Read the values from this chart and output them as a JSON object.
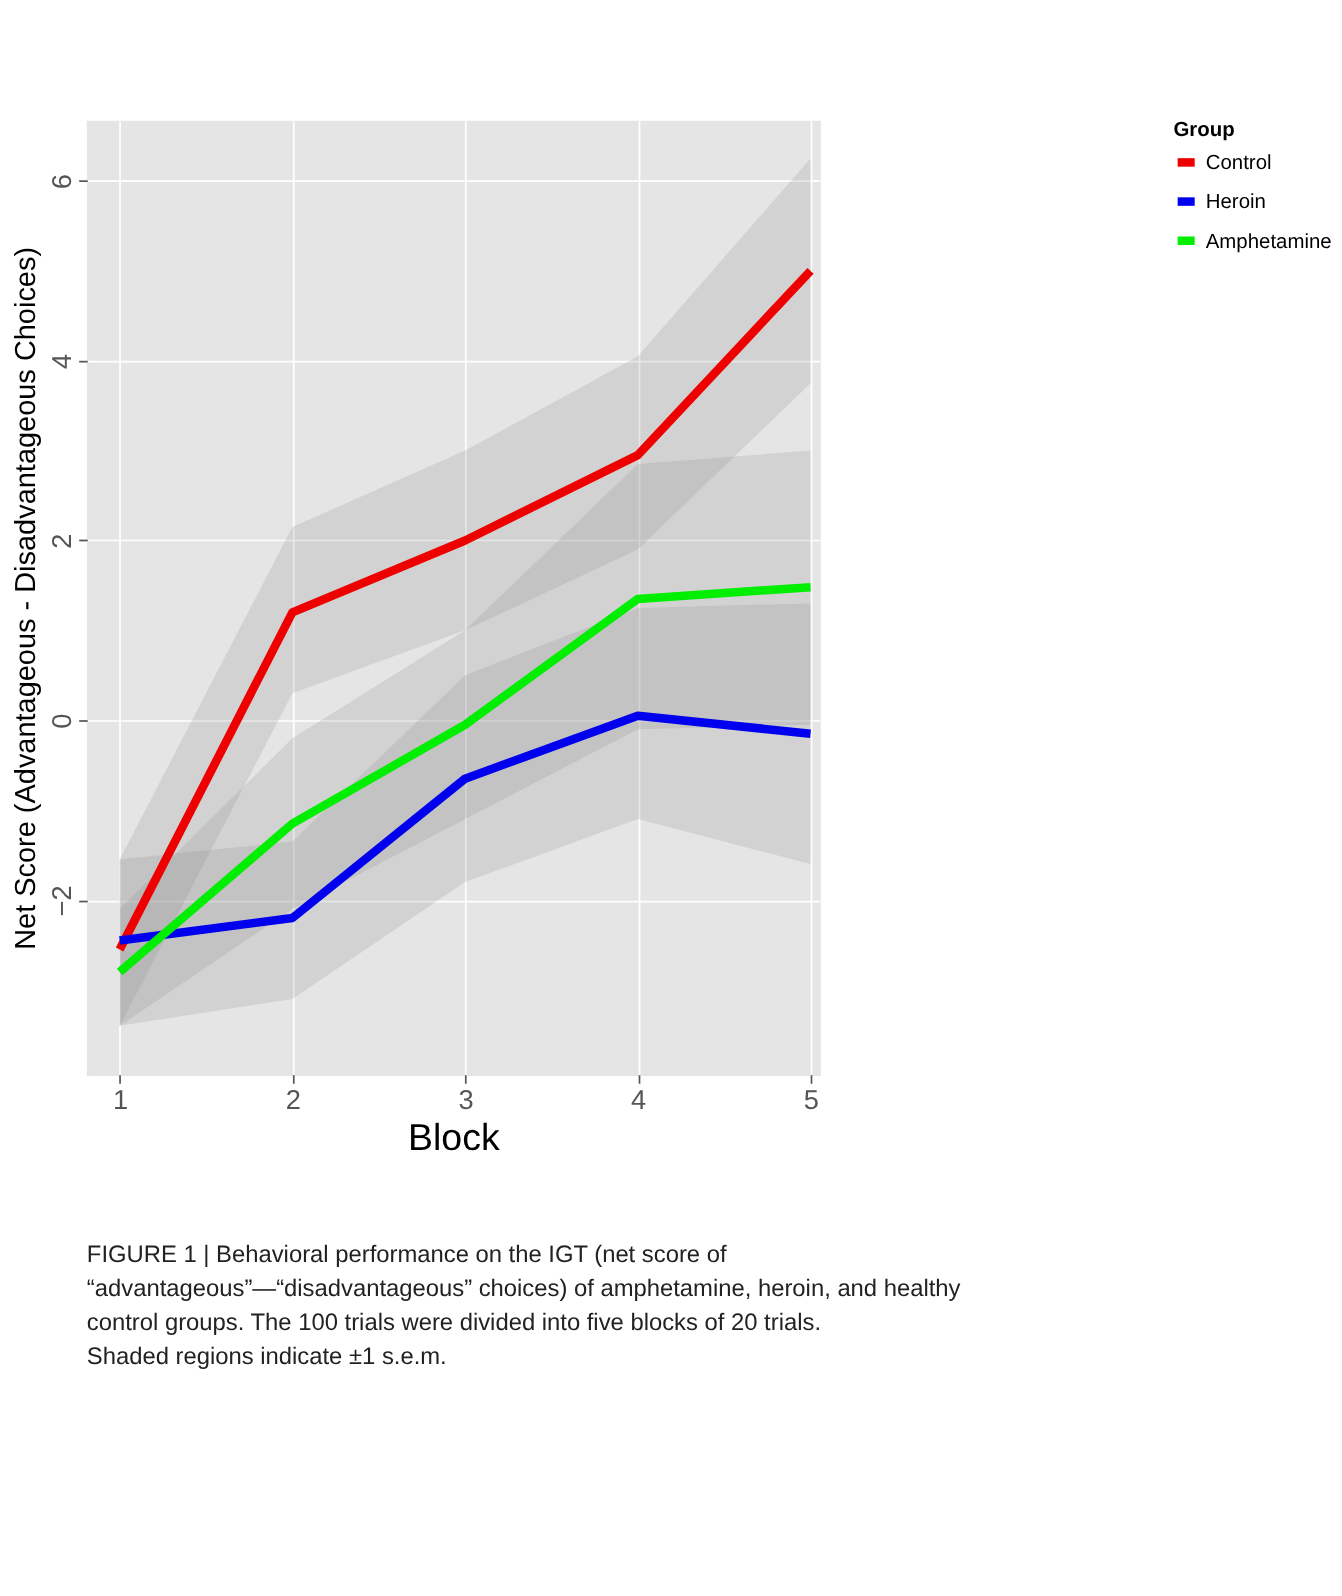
{
  "chart_data": {
    "type": "line",
    "xlabel": "Block",
    "ylabel": "Net Score (Advantageous - Disadvantageous Choices)",
    "legend_title": "Group",
    "legend": "right",
    "grid": true,
    "line_style": "solid",
    "marker": "none",
    "x": [
      1,
      2,
      3,
      4,
      5
    ],
    "xlim": [
      0.81,
      5.05
    ],
    "xticks": [
      1,
      2,
      3,
      4,
      5
    ],
    "ylim": [
      -3.94,
      6.67
    ],
    "yticks": [
      -2,
      0,
      2,
      4,
      6
    ],
    "series": [
      {
        "name": "Control",
        "color": "#ee0000",
        "values": [
          -2.55,
          1.2,
          2.0,
          2.95,
          5.0
        ],
        "lower": [
          -3.4,
          0.3,
          1.0,
          1.9,
          3.75
        ],
        "upper": [
          -1.55,
          2.15,
          3.0,
          4.05,
          6.25
        ]
      },
      {
        "name": "Heroin",
        "color": "#0000ee",
        "values": [
          -2.45,
          -2.2,
          -0.65,
          0.05,
          -0.15
        ],
        "lower": [
          -3.4,
          -3.1,
          -1.8,
          -1.1,
          -1.6
        ],
        "upper": [
          -1.55,
          -1.35,
          0.5,
          1.25,
          1.3
        ]
      },
      {
        "name": "Amphetamine",
        "color": "#00ee00",
        "values": [
          -2.8,
          -1.15,
          -0.05,
          1.35,
          1.48
        ],
        "lower": [
          -3.4,
          -2.1,
          -1.1,
          -0.1,
          -0.05
        ],
        "upper": [
          -2.1,
          -0.2,
          1.0,
          2.85,
          3.0
        ]
      }
    ],
    "annotations": [
      "FIGURE 1 | Behavioral performance on the IGT (net score of “advantageous”—“disadvantageous” choices) of amphetamine, heroin, and healthy control groups. The 100 trials were divided into five blocks of 20 trials. Shaded regions indicate ±1 s.e.m."
    ]
  }
}
